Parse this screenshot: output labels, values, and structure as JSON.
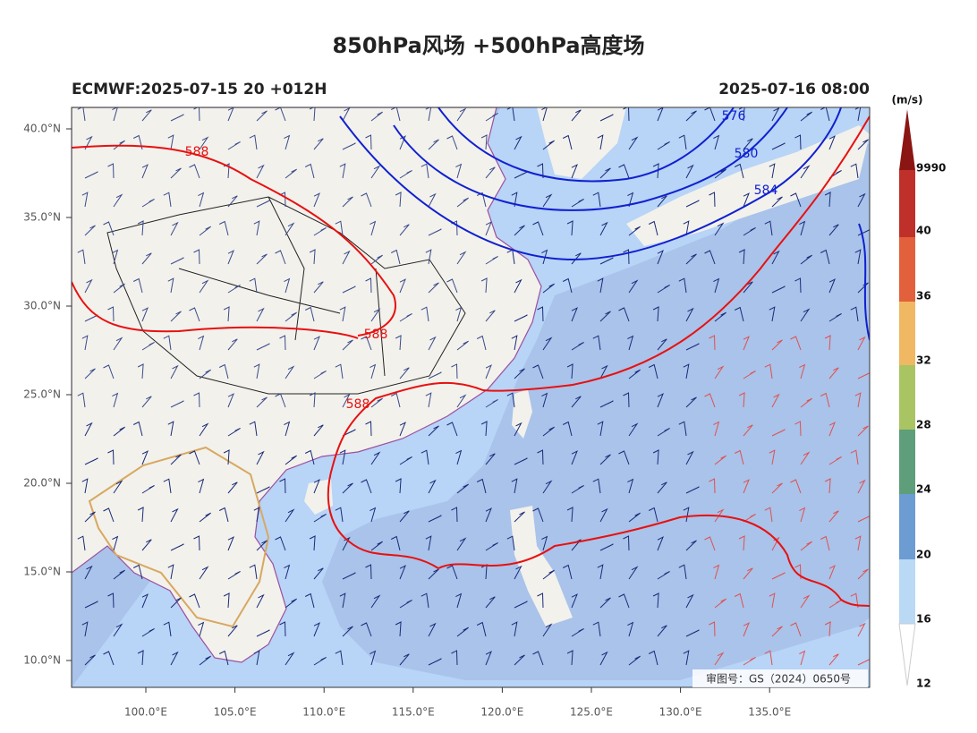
{
  "title": "850hPa风场 +500hPa高度场",
  "left_label": "ECMWF:2025-07-15 20 +012H",
  "right_label": "2025-07-16 08:00",
  "lat_ticks": [
    "40.0°N",
    "35.0°N",
    "30.0°N",
    "25.0°N",
    "20.0°N",
    "15.0°N",
    "10.0°N"
  ],
  "lon_ticks": [
    "100.0°E",
    "105.0°E",
    "110.0°E",
    "115.0°E",
    "120.0°E",
    "125.0°E",
    "130.0°E",
    "135.0°E"
  ],
  "colorbar": {
    "unit": "(m/s)",
    "labels": [
      "9990",
      "40",
      "36",
      "32",
      "28",
      "24",
      "20",
      "16",
      "12"
    ]
  },
  "contour_labels": {
    "blue": [
      "576",
      "580",
      "584"
    ],
    "red": [
      "588",
      "588",
      "588"
    ]
  },
  "review_number": "审图号：GS（2024）0650号"
}
